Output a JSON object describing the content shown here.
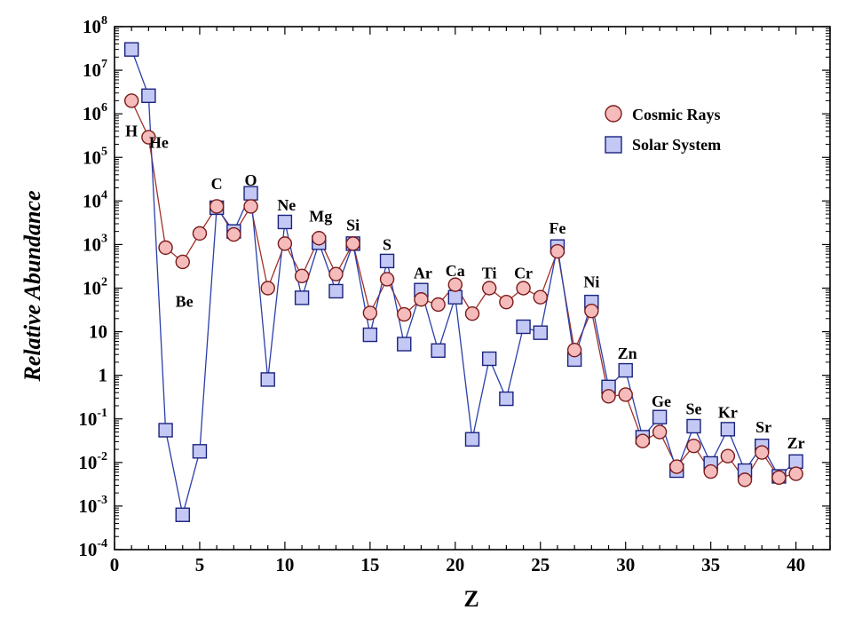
{
  "chart_data": {
    "type": "line",
    "title": "",
    "xlabel": "Z",
    "ylabel": "Relative Abundance",
    "xlim": [
      0,
      42
    ],
    "ylim": [
      0.0001,
      100000000
    ],
    "y_scale": "log",
    "grid": false,
    "legend_position": "top-right",
    "x_ticks": [
      0,
      5,
      10,
      15,
      20,
      25,
      30,
      35,
      40
    ],
    "y_ticks": [
      {
        "value": 100000000,
        "base": "10",
        "exp": "8"
      },
      {
        "value": 10000000,
        "base": "10",
        "exp": "7"
      },
      {
        "value": 1000000,
        "base": "10",
        "exp": "6"
      },
      {
        "value": 100000,
        "base": "10",
        "exp": "5"
      },
      {
        "value": 10000,
        "base": "10",
        "exp": "4"
      },
      {
        "value": 1000,
        "base": "10",
        "exp": "3"
      },
      {
        "value": 100,
        "base": "10",
        "exp": "2"
      },
      {
        "value": 10,
        "base": "10",
        "exp": ""
      },
      {
        "value": 1,
        "base": "1",
        "exp": ""
      },
      {
        "value": 0.1,
        "base": "10",
        "exp": "-1"
      },
      {
        "value": 0.01,
        "base": "10",
        "exp": "-2"
      },
      {
        "value": 0.001,
        "base": "10",
        "exp": "-3"
      },
      {
        "value": 0.0001,
        "base": "10",
        "exp": "-4"
      }
    ],
    "series": [
      {
        "name": "Cosmic Rays",
        "marker": "circle",
        "fill": "#f6bcbc",
        "stroke": "#7a1a1a",
        "line_color": "#a0302a",
        "x": [
          1,
          2,
          3,
          4,
          5,
          6,
          7,
          8,
          9,
          10,
          11,
          12,
          13,
          14,
          15,
          16,
          17,
          18,
          19,
          20,
          21,
          22,
          23,
          24,
          25,
          26,
          27,
          28,
          29,
          30,
          31,
          32,
          33,
          34,
          35,
          36,
          37,
          38,
          39,
          40
        ],
        "values": [
          2000000,
          290000,
          850,
          400,
          1800,
          7500,
          1700,
          7500,
          100,
          1050,
          190,
          1400,
          210,
          1050,
          27,
          160,
          25,
          55,
          42,
          120,
          26,
          100,
          48,
          100,
          62,
          700,
          3.8,
          30,
          0.33,
          0.36,
          0.031,
          0.05,
          0.008,
          0.024,
          0.0062,
          0.014,
          0.004,
          0.017,
          0.0045,
          0.0055
        ]
      },
      {
        "name": "Solar System",
        "marker": "square",
        "fill": "#c4c8f4",
        "stroke": "#1a237e",
        "line_color": "#2a3fa8",
        "x": [
          1,
          2,
          3,
          4,
          5,
          6,
          7,
          8,
          9,
          10,
          11,
          12,
          13,
          14,
          15,
          16,
          17,
          18,
          19,
          20,
          21,
          22,
          23,
          24,
          25,
          26,
          27,
          28,
          29,
          30,
          31,
          32,
          33,
          34,
          35,
          36,
          37,
          38,
          39,
          40
        ],
        "values": [
          30000000,
          2600000,
          0.055,
          0.00063,
          0.018,
          7000,
          2000,
          15000,
          0.8,
          3300,
          60,
          1100,
          85,
          1050,
          8.5,
          420,
          5.2,
          90,
          3.7,
          62,
          0.034,
          2.4,
          0.29,
          13,
          9.5,
          900,
          2.3,
          48,
          0.54,
          1.3,
          0.038,
          0.11,
          0.0065,
          0.068,
          0.0095,
          0.058,
          0.0065,
          0.024,
          0.0048,
          0.0105
        ]
      }
    ],
    "element_labels": [
      {
        "text": "H",
        "z": 1,
        "value": 400000
      },
      {
        "text": "He",
        "z": 2.6,
        "value": 220000
      },
      {
        "text": "Be",
        "z": 4.1,
        "value": 50
      },
      {
        "text": "C",
        "z": 6,
        "value": 25000
      },
      {
        "text": "O",
        "z": 8,
        "value": 30000
      },
      {
        "text": "Ne",
        "z": 10.1,
        "value": 8000
      },
      {
        "text": "Mg",
        "z": 12.1,
        "value": 4500
      },
      {
        "text": "Si",
        "z": 14,
        "value": 2800
      },
      {
        "text": "S",
        "z": 16,
        "value": 1000
      },
      {
        "text": "Ar",
        "z": 18.1,
        "value": 220
      },
      {
        "text": "Ca",
        "z": 20,
        "value": 250
      },
      {
        "text": "Ti",
        "z": 22,
        "value": 220
      },
      {
        "text": "Cr",
        "z": 24,
        "value": 220
      },
      {
        "text": "Fe",
        "z": 26,
        "value": 2400
      },
      {
        "text": "Ni",
        "z": 28,
        "value": 140
      },
      {
        "text": "Zn",
        "z": 30.1,
        "value": 3.2
      },
      {
        "text": "Ge",
        "z": 32.1,
        "value": 0.25
      },
      {
        "text": "Se",
        "z": 34,
        "value": 0.17
      },
      {
        "text": "Kr",
        "z": 36,
        "value": 0.14
      },
      {
        "text": "Sr",
        "z": 38.1,
        "value": 0.065
      },
      {
        "text": "Zr",
        "z": 40,
        "value": 0.028
      }
    ]
  }
}
